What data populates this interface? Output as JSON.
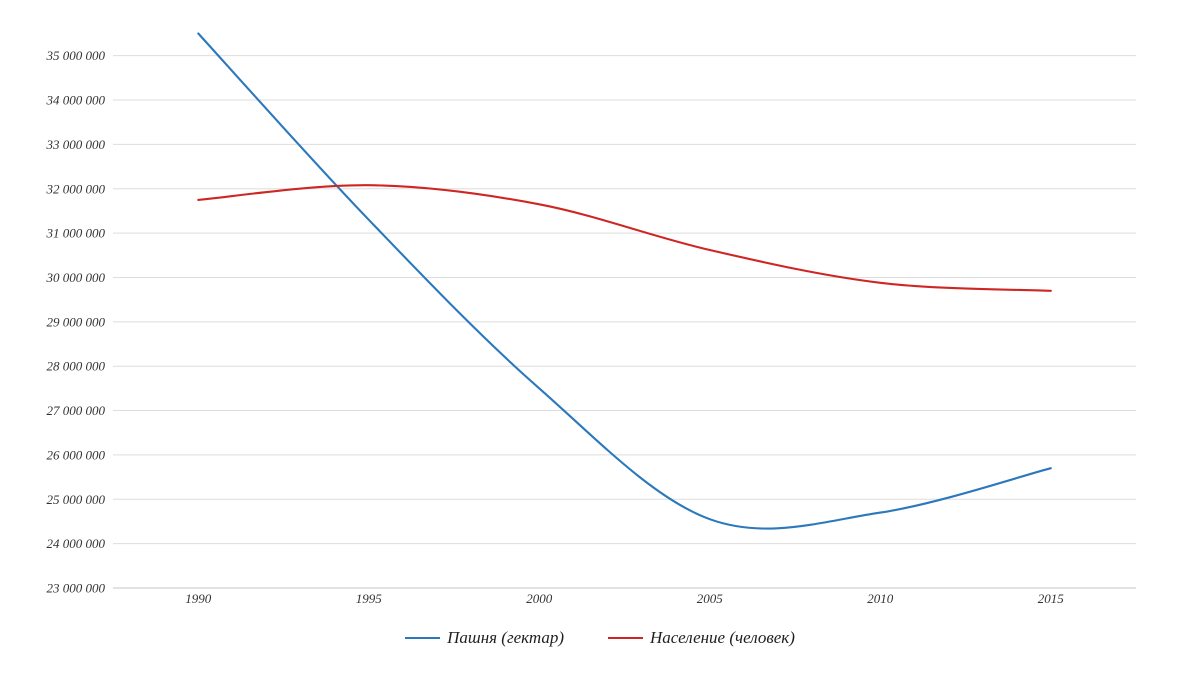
{
  "legend": {
    "items": [
      {
        "label": "Пашня (гектар)",
        "color": "#2B78BC"
      },
      {
        "label": "Население (человек)",
        "color": "#CE2723"
      }
    ]
  },
  "chart_data": {
    "type": "line",
    "title": "",
    "xlabel": "",
    "ylabel": "",
    "grid": "horizontal",
    "legend_position": "bottom",
    "smooth": true,
    "categories": [
      1990,
      1995,
      2000,
      2005,
      2010,
      2015
    ],
    "x_tick_labels": [
      "1990",
      "1995",
      "2000",
      "2005",
      "2010",
      "2015"
    ],
    "y_tick_values": [
      35000000,
      34000000,
      33000000,
      32000000,
      31000000,
      30000000,
      29000000,
      28000000,
      27000000,
      26000000,
      25000000,
      24000000,
      23000000
    ],
    "y_tick_labels": [
      "35 000 000",
      "34 000 000",
      "33 000 000",
      "32 000 000",
      "31 000 000",
      "30 000 000",
      "29 000 000",
      "28 000 000",
      "27 000 000",
      "26 000 000",
      "25 000 000",
      "24 000 000",
      "23 000 000"
    ],
    "ylim": [
      23000000,
      35500000
    ],
    "series": [
      {
        "name": "Пашня (гектар)",
        "color": "#2B78BC",
        "values": [
          35500000,
          31300000,
          27500000,
          24550000,
          24700000,
          25700000
        ]
      },
      {
        "name": "Население (человек)",
        "color": "#CE2723",
        "values": [
          31750000,
          32080000,
          31650000,
          30620000,
          29880000,
          29700000
        ]
      }
    ],
    "colors": {
      "gridline": "#DEDEDE",
      "axis_line": "#C6C6C6",
      "tick_text": "#333333"
    }
  }
}
